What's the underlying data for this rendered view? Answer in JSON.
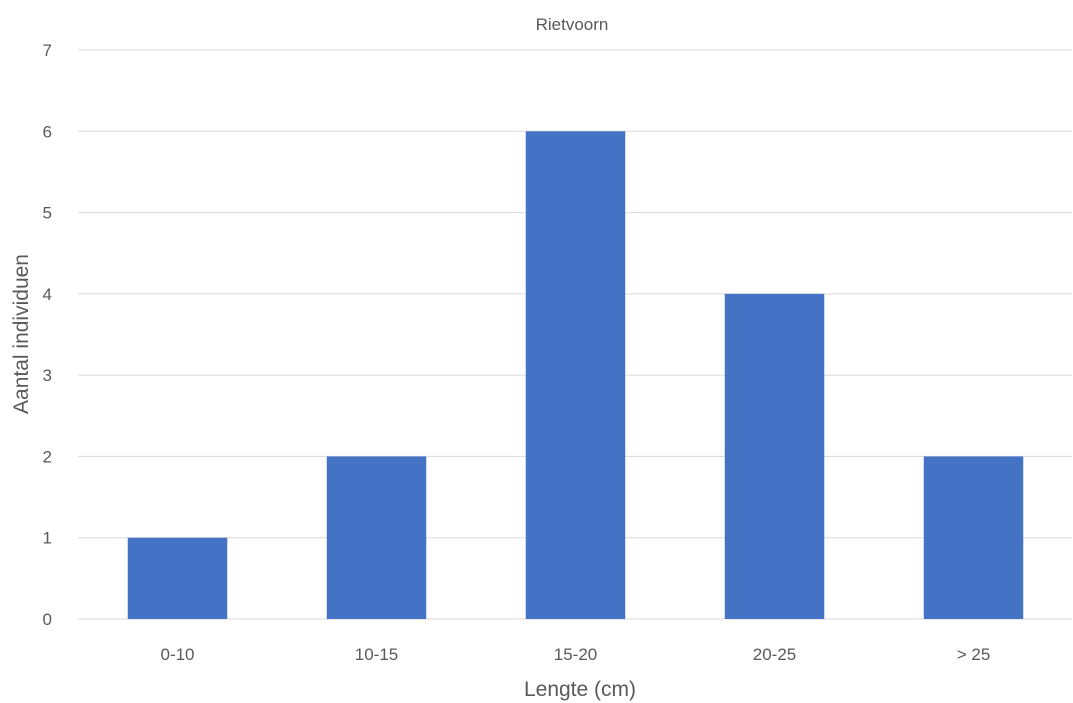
{
  "chart_data": {
    "type": "bar",
    "title": "Rietvoorn",
    "xlabel": "Lengte (cm)",
    "ylabel": "Aantal individuen",
    "categories": [
      "0-10",
      "10-15",
      "15-20",
      "20-25",
      "> 25"
    ],
    "values": [
      1,
      2,
      6,
      4,
      2
    ],
    "ylim": [
      0,
      7
    ],
    "yticks": [
      "0",
      "1",
      "2",
      "3",
      "4",
      "5",
      "6",
      "7"
    ],
    "grid": true,
    "legend": "none",
    "bar_color": "#4472c4"
  }
}
